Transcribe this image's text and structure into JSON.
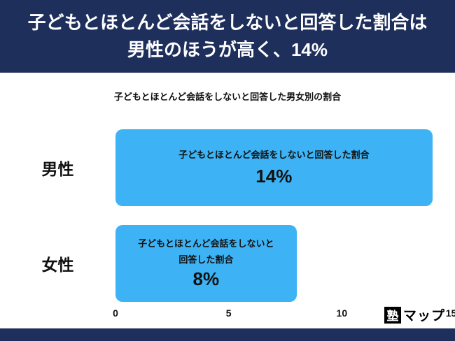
{
  "banner": {
    "title_line1": "子どもとほとんど会話をしないと回答した割合は",
    "title_line2": "男性のほうが高く、14%"
  },
  "chart": {
    "title": "子どもとほとんど会話をしないと回答した男女別の割合"
  },
  "chart_data": {
    "type": "bar",
    "orientation": "horizontal",
    "title": "子どもとほとんど会話をしないと回答した男女別の割合",
    "categories": [
      "男性",
      "女性"
    ],
    "values": [
      14,
      8
    ],
    "unit": "%",
    "xlim": [
      0,
      15
    ],
    "x_ticks": [
      "0",
      "5",
      "10",
      "15"
    ],
    "x_tick_values": [
      0,
      5,
      10,
      15
    ],
    "grid": false,
    "legend": false,
    "bar_annotations": [
      {
        "line1": "子どもとほとんど会話をしないと回答した割合",
        "line2": "",
        "value": "14%"
      },
      {
        "line1": "子どもとほとんど会話をしないと",
        "line2": "回答した割合",
        "value": "8%"
      }
    ]
  },
  "footer": {
    "logo_box": "塾",
    "logo_text": "マップ"
  },
  "colors": {
    "banner_bg": "#1e2f5c",
    "strip_bg": "#1e2f5c",
    "bar": "#3db3f5",
    "logo_box_bg": "#000000"
  }
}
